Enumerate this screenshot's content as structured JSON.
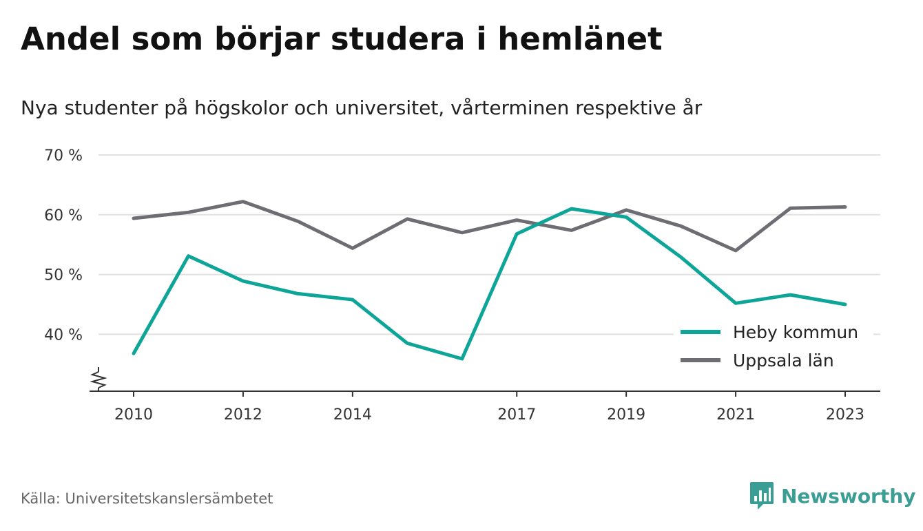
{
  "title": "Andel som börjar studera i hemlänet",
  "subtitle": "Nya studenter på högskolor och universitet, vårterminen respektive år",
  "source": "Källa: Universitetskanslersämbetet",
  "brand": {
    "name": "Newsworthy",
    "icon": "newsworthy-logo-icon",
    "color": "#3a9e94"
  },
  "chart_data": {
    "type": "line",
    "x": [
      2010,
      2011,
      2012,
      2013,
      2014,
      2015,
      2016,
      2017,
      2018,
      2019,
      2020,
      2021,
      2022,
      2023
    ],
    "x_tick_labels": [
      "2010",
      "2012",
      "2014",
      "2017",
      "2019",
      "2021",
      "2023"
    ],
    "y_tick_values": [
      40,
      50,
      60,
      70
    ],
    "y_tick_labels": [
      "40 %",
      "50 %",
      "60 %",
      "70 %"
    ],
    "ylim": [
      31,
      70
    ],
    "y_axis_break": true,
    "grid": true,
    "legend_position": "bottom-right",
    "series": [
      {
        "name": "Heby kommun",
        "color": "#0ea599",
        "values": [
          36.8,
          53.1,
          48.9,
          46.8,
          45.8,
          38.5,
          35.9,
          56.8,
          61.0,
          59.6,
          52.9,
          45.2,
          46.6,
          45.0
        ]
      },
      {
        "name": "Uppsala län",
        "color": "#6e6d74",
        "values": [
          59.4,
          60.4,
          62.2,
          58.9,
          54.4,
          59.3,
          57.0,
          59.1,
          57.4,
          60.8,
          58.1,
          54.0,
          61.1,
          61.3
        ]
      }
    ]
  }
}
